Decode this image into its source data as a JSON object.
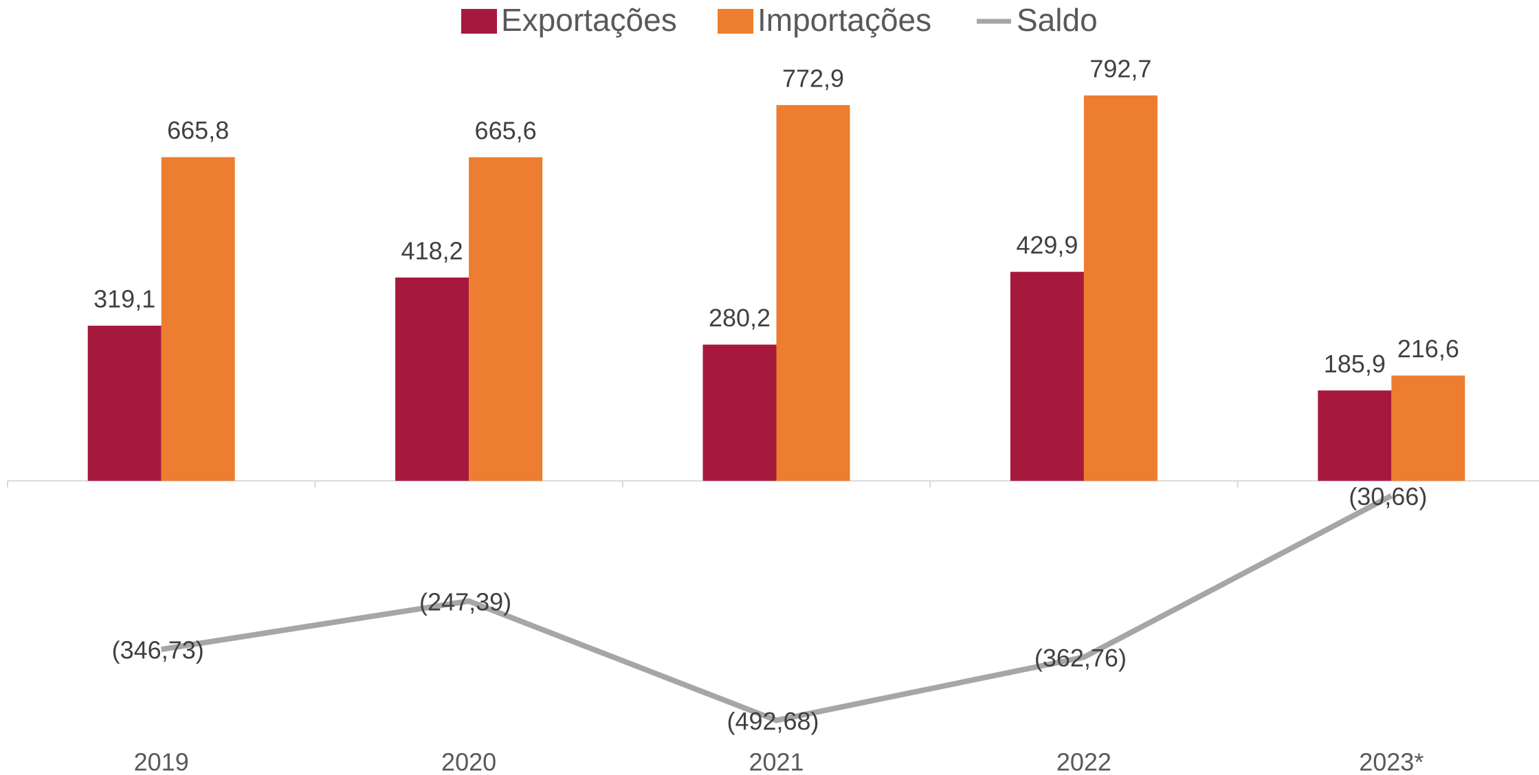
{
  "chart_data": {
    "type": "bar",
    "categories": [
      "2019",
      "2020",
      "2021",
      "2022",
      "2023*"
    ],
    "series": [
      {
        "name": "Exportações",
        "type": "bar",
        "color": "#a6193c",
        "values": [
          319.1,
          418.2,
          280.2,
          429.9,
          185.9
        ],
        "value_labels": [
          "319,1",
          "418,2",
          "280,2",
          "429,9",
          "185,9"
        ]
      },
      {
        "name": "Importações",
        "type": "bar",
        "color": "#ed7d31",
        "values": [
          665.8,
          665.6,
          772.9,
          792.7,
          216.6
        ],
        "value_labels": [
          "665,8",
          "665,6",
          "772,9",
          "792,7",
          "216,6"
        ]
      },
      {
        "name": "Saldo",
        "type": "line",
        "color": "#a6a6a6",
        "values": [
          -346.73,
          -247.39,
          -492.68,
          -362.76,
          -30.66
        ],
        "value_labels": [
          "(346,73)",
          "(247,39)",
          "(492,68)",
          "(362,76)",
          "(30,66)"
        ]
      }
    ],
    "ylim": [
      -550,
      900
    ],
    "legend": "top"
  }
}
